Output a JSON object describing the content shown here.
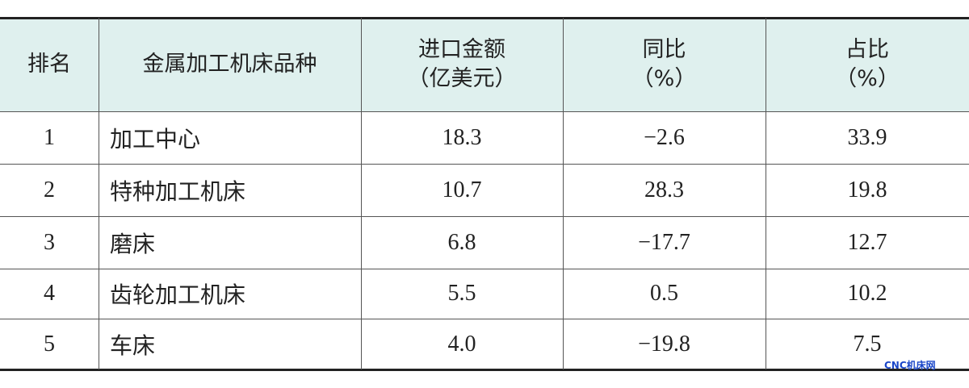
{
  "table": {
    "header": [
      [
        "排名"
      ],
      [
        "金属加工机床品种"
      ],
      [
        "进口金额",
        "（亿美元）"
      ],
      [
        "同比",
        "（%）"
      ],
      [
        "占比",
        "（%）"
      ]
    ],
    "rows": [
      [
        "1",
        "加工中心",
        "18.3",
        "−2.6",
        "33.9"
      ],
      [
        "2",
        "特种加工机床",
        "10.7",
        "28.3",
        "19.8"
      ],
      [
        "3",
        "磨床",
        "6.8",
        "−17.7",
        "12.7"
      ],
      [
        "4",
        "齿轮加工机床",
        "5.5",
        "0.5",
        "10.2"
      ],
      [
        "5",
        "车床",
        "4.0",
        "−19.8",
        "7.5"
      ]
    ]
  },
  "watermark": "CNC机床网"
}
